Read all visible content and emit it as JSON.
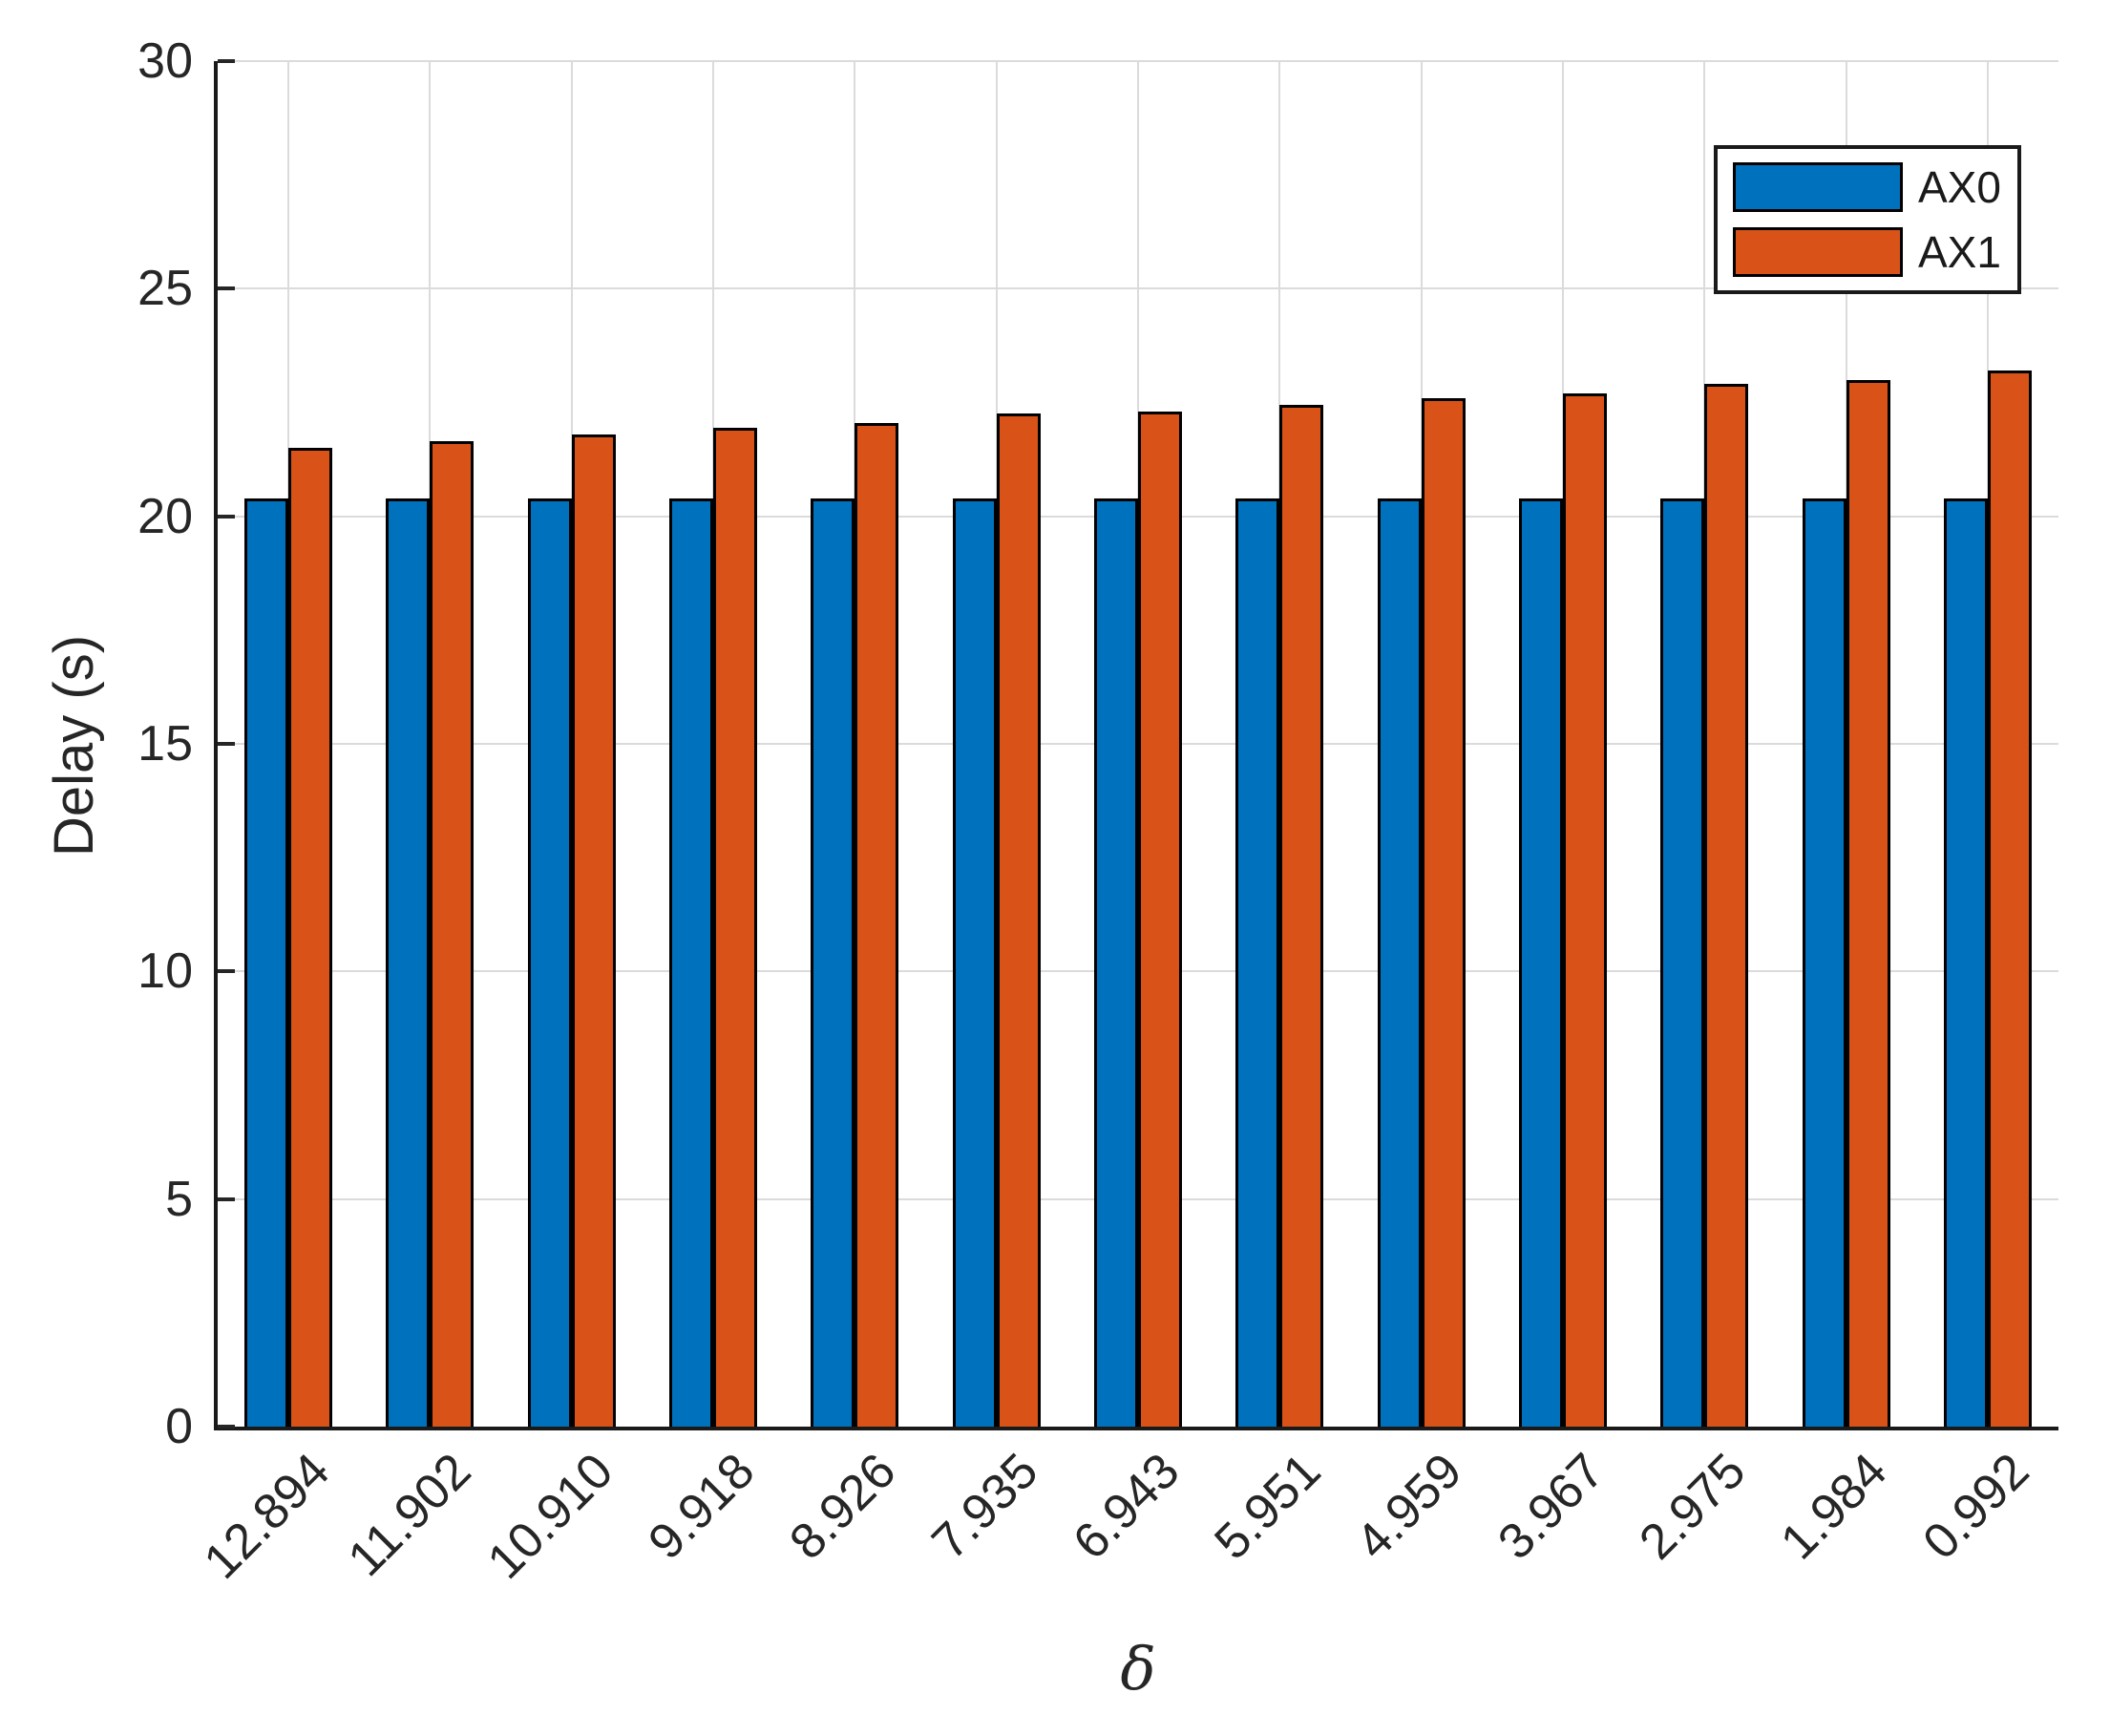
{
  "chart_data": {
    "type": "bar",
    "title": "",
    "xlabel": "δ",
    "ylabel": "Delay (s)",
    "categories": [
      "12.894",
      "11.902",
      "10.910",
      "9.918",
      "8.926",
      "7.935",
      "6.943",
      "5.951",
      "4.959",
      "3.967",
      "2.975",
      "1.984",
      "0.992"
    ],
    "series": [
      {
        "name": "AX0",
        "color": "#0072BD",
        "values": [
          20.4,
          20.4,
          20.4,
          20.4,
          20.4,
          20.4,
          20.4,
          20.4,
          20.4,
          20.4,
          20.4,
          20.4,
          20.4
        ]
      },
      {
        "name": "AX1",
        "color": "#D95319",
        "values": [
          21.5,
          21.65,
          21.8,
          21.95,
          22.05,
          22.25,
          22.3,
          22.45,
          22.6,
          22.7,
          22.9,
          23.0,
          23.2
        ]
      }
    ],
    "ylim": [
      0,
      30
    ],
    "yticks": [
      0,
      5,
      10,
      15,
      20,
      25,
      30
    ],
    "grid": true,
    "legend_position": "top-right",
    "grid_color": "#DBDBDB",
    "axis_color": "#262626"
  }
}
